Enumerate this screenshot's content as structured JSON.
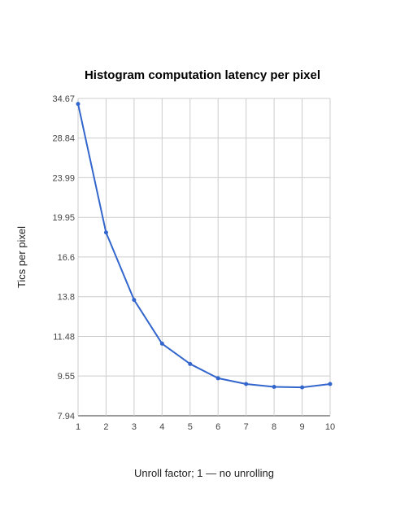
{
  "chart_data": {
    "type": "line",
    "title": "Histogram computation latency per pixel",
    "xlabel": "Unroll factor; 1 — no unrolling",
    "ylabel": "Tics per pixel",
    "scale_y": "log",
    "grid": true,
    "xlim": [
      1,
      10
    ],
    "ylim": [
      7.94,
      34.67
    ],
    "x_ticks": [
      "1",
      "2",
      "3",
      "4",
      "5",
      "6",
      "7",
      "8",
      "9",
      "10"
    ],
    "y_ticks": [
      "7.94",
      "9.55",
      "11.48",
      "13.8",
      "16.6",
      "19.95",
      "23.99",
      "28.84",
      "34.67"
    ],
    "y_tick_values": [
      7.94,
      9.55,
      11.48,
      13.8,
      16.6,
      19.95,
      23.99,
      28.84,
      34.67
    ],
    "series": [
      {
        "color": "#3366cc",
        "x": [
          1,
          2,
          3,
          4,
          5,
          6,
          7,
          8,
          9,
          10
        ],
        "values": [
          33.8,
          18.6,
          13.6,
          11.1,
          10.1,
          9.45,
          9.2,
          9.08,
          9.06,
          9.2
        ]
      }
    ]
  }
}
